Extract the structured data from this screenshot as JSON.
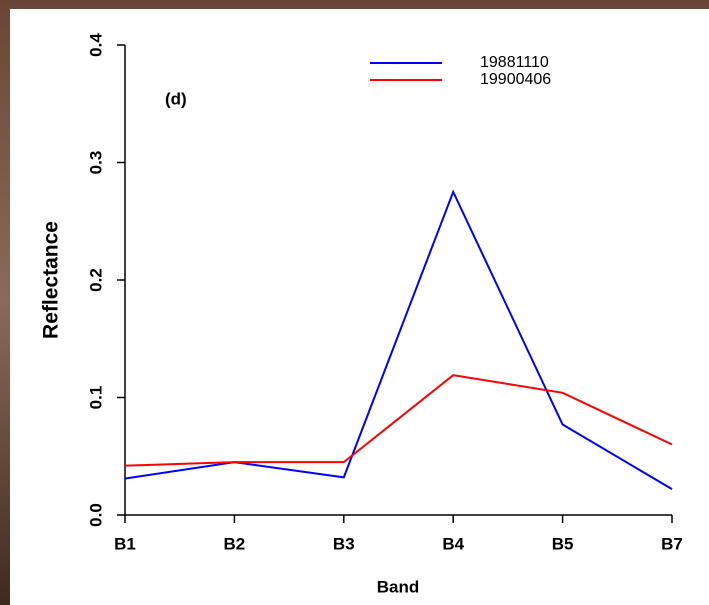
{
  "chart_data": {
    "type": "line",
    "annotation": "(d)",
    "x_label": "Band",
    "y_label": "Reflectance",
    "categories": [
      "B1",
      "B2",
      "B3",
      "B4",
      "B5",
      "B7"
    ],
    "series": [
      {
        "name": "19881110",
        "color": "#0000ff",
        "values": [
          0.031,
          0.045,
          0.032,
          0.275,
          0.077,
          0.022
        ]
      },
      {
        "name": "19900406",
        "color": "#ff0000",
        "values": [
          0.042,
          0.045,
          0.045,
          0.119,
          0.104,
          0.06
        ]
      }
    ],
    "ylim": [
      0,
      0.4
    ],
    "yticks": [
      {
        "value": 0,
        "label": "0.0"
      },
      0.1,
      0.2,
      0.3,
      0.4
    ]
  }
}
